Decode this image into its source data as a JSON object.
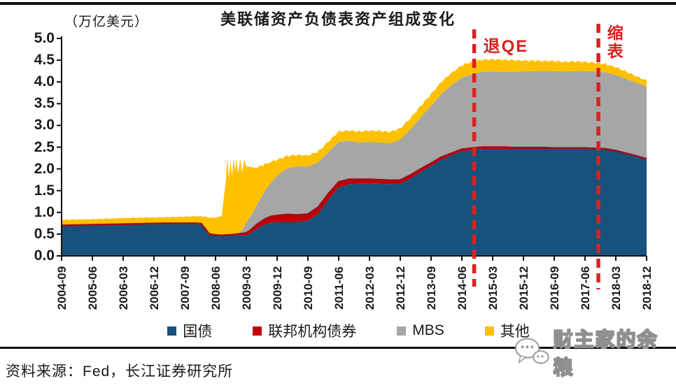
{
  "chart_data": {
    "type": "area",
    "stacked": true,
    "title": "美联储资产负债表资产组成变化",
    "unit_label": "（万亿美元）",
    "unit": "万亿美元",
    "y_axis": {
      "min": 0,
      "max": 5,
      "step": 0.5
    },
    "x_axis": {
      "tick_labels": [
        "2004-09",
        "2005-06",
        "2006-03",
        "2006-12",
        "2007-09",
        "2008-06",
        "2009-03",
        "2009-12",
        "2010-09",
        "2011-06",
        "2012-03",
        "2012-12",
        "2013-09",
        "2014-06",
        "2015-03",
        "2015-12",
        "2016-09",
        "2017-06",
        "2018-03",
        "2018-12"
      ],
      "quarters_per_tick": 3
    },
    "grid": false,
    "legend_position": "bottom",
    "axis_color": "#111111",
    "series": [
      {
        "key": "treasury",
        "label": "国债",
        "color": "#17527C"
      },
      {
        "key": "agency",
        "label": "联邦机构债券",
        "color": "#C00000",
        "edge_color": "#A00E1E"
      },
      {
        "key": "mbs",
        "label": "MBS",
        "color": "#A6A6A6"
      },
      {
        "key": "other",
        "label": "其他",
        "color": "#FFC000"
      }
    ],
    "point_format": [
      "quarter_index_from_2004-09",
      "treasury",
      "agency",
      "mbs",
      "other"
    ],
    "points": [
      [
        0,
        0.7,
        0,
        0,
        0.13
      ],
      [
        2,
        0.71,
        0,
        0,
        0.13
      ],
      [
        4,
        0.72,
        0,
        0,
        0.13
      ],
      [
        6,
        0.73,
        0,
        0,
        0.14
      ],
      [
        8,
        0.74,
        0,
        0,
        0.14
      ],
      [
        10,
        0.75,
        0,
        0,
        0.14
      ],
      [
        12,
        0.75,
        0,
        0,
        0.15
      ],
      [
        13,
        0.75,
        0,
        0,
        0.16
      ],
      [
        13.6,
        0.74,
        0,
        0,
        0.17
      ],
      [
        14,
        0.62,
        0,
        0,
        0.28
      ],
      [
        14.4,
        0.5,
        0,
        0,
        0.38
      ],
      [
        15,
        0.48,
        0,
        0,
        0.4
      ],
      [
        15.6,
        0.47,
        0,
        0,
        0.44
      ],
      [
        16,
        0.47,
        0.01,
        0,
        1.25
      ],
      [
        16.15,
        0.47,
        0.01,
        0,
        1.78
      ],
      [
        16.3,
        0.47,
        0.01,
        0,
        1.3
      ],
      [
        16.45,
        0.47,
        0.01,
        0,
        1.72
      ],
      [
        16.6,
        0.47,
        0.02,
        0,
        1.33
      ],
      [
        16.75,
        0.47,
        0.02,
        0,
        1.74
      ],
      [
        16.9,
        0.47,
        0.02,
        0,
        1.45
      ],
      [
        17,
        0.47,
        0.03,
        0,
        1.73
      ],
      [
        17.2,
        0.47,
        0.03,
        0.02,
        1.38
      ],
      [
        17.4,
        0.47,
        0.04,
        0.05,
        1.66
      ],
      [
        17.6,
        0.47,
        0.04,
        0.08,
        1.33
      ],
      [
        17.8,
        0.47,
        0.05,
        0.15,
        1.55
      ],
      [
        18,
        0.47,
        0.06,
        0.24,
        1.28
      ],
      [
        18.3,
        0.5,
        0.07,
        0.3,
        1.18
      ],
      [
        18.6,
        0.55,
        0.08,
        0.36,
        1.05
      ],
      [
        19,
        0.62,
        0.1,
        0.44,
        0.86
      ],
      [
        19.5,
        0.69,
        0.11,
        0.56,
        0.72
      ],
      [
        20,
        0.74,
        0.13,
        0.69,
        0.56
      ],
      [
        20.5,
        0.77,
        0.14,
        0.8,
        0.46
      ],
      [
        21,
        0.78,
        0.15,
        0.91,
        0.37
      ],
      [
        22,
        0.78,
        0.17,
        1.07,
        0.28
      ],
      [
        23,
        0.78,
        0.16,
        1.12,
        0.26
      ],
      [
        24,
        0.81,
        0.15,
        1.09,
        0.26
      ],
      [
        25,
        0.97,
        0.15,
        1.03,
        0.25
      ],
      [
        26,
        1.29,
        0.14,
        0.96,
        0.24
      ],
      [
        27,
        1.58,
        0.12,
        0.92,
        0.24
      ],
      [
        28,
        1.65,
        0.11,
        0.89,
        0.23
      ],
      [
        29,
        1.66,
        0.1,
        0.85,
        0.25
      ],
      [
        30,
        1.66,
        0.1,
        0.86,
        0.26
      ],
      [
        31,
        1.66,
        0.09,
        0.86,
        0.26
      ],
      [
        32,
        1.65,
        0.09,
        0.85,
        0.26
      ],
      [
        33,
        1.66,
        0.08,
        0.93,
        0.26
      ],
      [
        34,
        1.78,
        0.08,
        1.05,
        0.26
      ],
      [
        35,
        1.93,
        0.07,
        1.19,
        0.26
      ],
      [
        36,
        2.07,
        0.06,
        1.32,
        0.27
      ],
      [
        37,
        2.21,
        0.06,
        1.45,
        0.28
      ],
      [
        38,
        2.31,
        0.05,
        1.57,
        0.28
      ],
      [
        39,
        2.4,
        0.05,
        1.65,
        0.28
      ],
      [
        40,
        2.44,
        0.04,
        1.7,
        0.29
      ],
      [
        41,
        2.46,
        0.04,
        1.73,
        0.28
      ],
      [
        42,
        2.46,
        0.04,
        1.74,
        0.28
      ],
      [
        43,
        2.46,
        0.04,
        1.74,
        0.27
      ],
      [
        44,
        2.46,
        0.03,
        1.74,
        0.27
      ],
      [
        45,
        2.46,
        0.03,
        1.75,
        0.25
      ],
      [
        46,
        2.46,
        0.03,
        1.76,
        0.24
      ],
      [
        47,
        2.46,
        0.03,
        1.76,
        0.23
      ],
      [
        48,
        2.46,
        0.02,
        1.77,
        0.23
      ],
      [
        49,
        2.46,
        0.02,
        1.76,
        0.22
      ],
      [
        50,
        2.46,
        0.02,
        1.77,
        0.22
      ],
      [
        51,
        2.46,
        0.02,
        1.77,
        0.21
      ],
      [
        52,
        2.46,
        0.01,
        1.77,
        0.2
      ],
      [
        53,
        2.45,
        0.01,
        1.76,
        0.19
      ],
      [
        54,
        2.41,
        0.01,
        1.74,
        0.18
      ],
      [
        55,
        2.35,
        0.01,
        1.71,
        0.17
      ],
      [
        56,
        2.29,
        0.01,
        1.68,
        0.15
      ],
      [
        57,
        2.23,
        0,
        1.66,
        0.14
      ]
    ],
    "annotations": [
      {
        "label": "退QE",
        "x_quarter": 40.2,
        "layout": "horizontal"
      },
      {
        "label": "缩表",
        "x_quarter": 52.3,
        "layout": "vertical"
      }
    ],
    "annotation_color": "#D8231E"
  },
  "footer": {
    "source": "资料来源：Fed，长江证券研究所"
  },
  "watermark": {
    "text": "财主家的余粮"
  }
}
